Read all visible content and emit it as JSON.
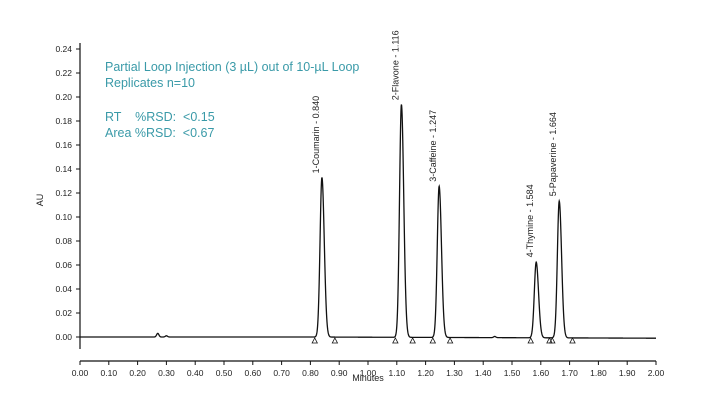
{
  "chart_data": {
    "type": "line",
    "xlabel": "Minutes",
    "ylabel": "AU",
    "xlim": [
      0.0,
      2.0
    ],
    "ylim": [
      -0.01,
      0.24
    ],
    "xticks": [
      "0.00",
      "0.10",
      "0.20",
      "0.30",
      "0.40",
      "0.50",
      "0.60",
      "0.70",
      "0.80",
      "0.90",
      "1.00",
      "1.10",
      "1.20",
      "1.30",
      "1.40",
      "1.50",
      "1.60",
      "1.70",
      "1.80",
      "1.90",
      "2.00"
    ],
    "yticks": [
      "0.00",
      "0.02",
      "0.04",
      "0.06",
      "0.08",
      "0.10",
      "0.12",
      "0.14",
      "0.16",
      "0.18",
      "0.20",
      "0.22",
      "0.24"
    ],
    "grid": false,
    "line_color": "#111111",
    "annotation_color": "#3a9aa8",
    "annotations": [
      "Partial Loop Injection (3 µL) out of 10-µL Loop",
      "Replicates n=10",
      "RT    %RSD:  <0.15",
      "Area %RSD:  <0.67"
    ],
    "peaks": [
      {
        "label": "1-Coumarin - 0.840",
        "rt": 0.84,
        "height": 0.133
      },
      {
        "label": "2-Flavone - 1.116",
        "rt": 1.116,
        "height": 0.194
      },
      {
        "label": "3-Caffeine - 1.247",
        "rt": 1.247,
        "height": 0.126
      },
      {
        "label": "4-Thymine - 1.584",
        "rt": 1.584,
        "height": 0.063
      },
      {
        "label": "5-Papaverine - 1.664",
        "rt": 1.664,
        "height": 0.114
      }
    ],
    "minor_peaks": [
      {
        "rt": 0.27,
        "height": 0.003
      },
      {
        "rt": 0.3,
        "height": 0.001
      },
      {
        "rt": 1.44,
        "height": 0.001
      }
    ],
    "integration_markers": [
      0.815,
      0.885,
      1.095,
      1.155,
      1.225,
      1.285,
      1.565,
      1.63,
      1.64,
      1.71
    ]
  }
}
